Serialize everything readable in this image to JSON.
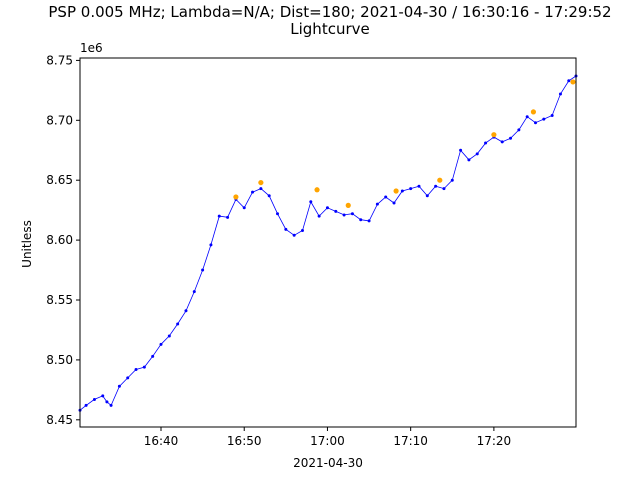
{
  "chart_data": {
    "type": "line",
    "title": "PSP 0.005 MHz; Lambda=N/A; Dist=180; 2021-04-30 / 16:30:16 - 17:29:52",
    "subtitle": "Lightcurve",
    "xlabel": "2021-04-30",
    "ylabel": "Unitless",
    "y_offset_label": "1e6",
    "xlim": [
      "16:30:16",
      "17:29:52"
    ],
    "ylim": [
      8.444,
      8.752
    ],
    "x_ticks": [
      "16:40",
      "16:50",
      "17:00",
      "17:10",
      "17:20"
    ],
    "y_ticks": [
      "8.45",
      "8.50",
      "8.55",
      "8.60",
      "8.65",
      "8.70",
      "8.75"
    ],
    "grid": false,
    "series": [
      {
        "color": "#0000ff",
        "style": "line-with-dots",
        "x": [
          "16:30:16",
          "16:31:00",
          "16:32:00",
          "16:33:00",
          "16:33:30",
          "16:34:00",
          "16:35:00",
          "16:36:00",
          "16:37:00",
          "16:38:00",
          "16:39:00",
          "16:40:00",
          "16:41:00",
          "16:42:00",
          "16:43:00",
          "16:44:00",
          "16:45:00",
          "16:46:00",
          "16:47:00",
          "16:48:00",
          "16:49:00",
          "16:50:00",
          "16:51:00",
          "16:52:00",
          "16:53:00",
          "16:54:00",
          "16:55:00",
          "16:56:00",
          "16:57:00",
          "16:58:00",
          "16:59:00",
          "17:00:00",
          "17:01:00",
          "17:02:00",
          "17:03:00",
          "17:04:00",
          "17:05:00",
          "17:06:00",
          "17:07:00",
          "17:08:00",
          "17:09:00",
          "17:10:00",
          "17:11:00",
          "17:12:00",
          "17:13:00",
          "17:14:00",
          "17:15:00",
          "17:16:00",
          "17:17:00",
          "17:18:00",
          "17:19:00",
          "17:20:00",
          "17:21:00",
          "17:22:00",
          "17:23:00",
          "17:24:00",
          "17:25:00",
          "17:26:00",
          "17:27:00",
          "17:28:00",
          "17:29:00",
          "17:29:52"
        ],
        "y": [
          8.458,
          8.462,
          8.467,
          8.47,
          8.465,
          8.462,
          8.478,
          8.485,
          8.492,
          8.494,
          8.503,
          8.513,
          8.52,
          8.53,
          8.541,
          8.557,
          8.575,
          8.596,
          8.62,
          8.619,
          8.634,
          8.627,
          8.64,
          8.643,
          8.637,
          8.622,
          8.609,
          8.604,
          8.608,
          8.632,
          8.62,
          8.627,
          8.624,
          8.621,
          8.622,
          8.617,
          8.616,
          8.63,
          8.636,
          8.631,
          8.641,
          8.643,
          8.645,
          8.637,
          8.645,
          8.643,
          8.65,
          8.675,
          8.667,
          8.672,
          8.681,
          8.686,
          8.682,
          8.685,
          8.692,
          8.703,
          8.698,
          8.701,
          8.704,
          8.722,
          8.733,
          8.737
        ]
      },
      {
        "color": "#ffa500",
        "style": "markers",
        "x": [
          "16:49:00",
          "16:52:00",
          "16:58:45",
          "17:02:30",
          "17:08:15",
          "17:13:30",
          "17:20:00",
          "17:24:45",
          "17:29:30"
        ],
        "y": [
          8.636,
          8.648,
          8.642,
          8.629,
          8.641,
          8.65,
          8.688,
          8.707,
          8.732
        ]
      }
    ]
  }
}
